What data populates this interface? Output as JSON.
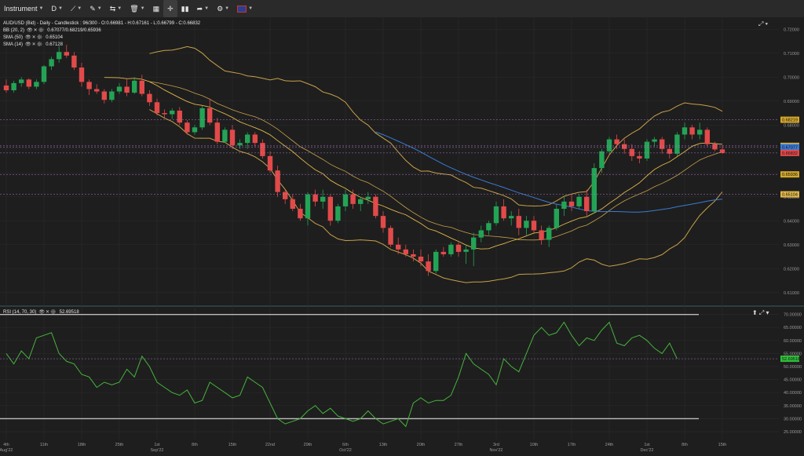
{
  "toolbar": {
    "instrument_label": "Instrument",
    "timeframe_label": "D",
    "items": [
      "chart-type",
      "draw",
      "measure",
      "delete",
      "layout",
      "fullscreen",
      "indicators",
      "share",
      "weather",
      "flag"
    ]
  },
  "header": {
    "symbol_line": "AUD/USD (Bid) - Daily - Candlestick : 96/300 - O:0.66981 - H:0.67161 - L:0.66799 - C:0.66832"
  },
  "indicators": [
    {
      "label": "BB (20, 2)",
      "values": "0.67077/0.68219/0.65936"
    },
    {
      "label": "SMA (50)",
      "values": "0.65104"
    },
    {
      "label": "SMA (14)",
      "values": "0.67128"
    }
  ],
  "rsi": {
    "label": "RSI (14, 70, 30)",
    "value": "52.69518",
    "axis": [
      "70.00000",
      "65.00000",
      "60.00000",
      "55.00000",
      "50.00000",
      "45.00000",
      "40.00000",
      "35.00000",
      "30.00000",
      "25.00000"
    ],
    "current_tag": "52.69518"
  },
  "price_axis": {
    "ticks": [
      "0.72000",
      "0.71000",
      "0.70000",
      "0.69000",
      "0.68000",
      "0.67000",
      "0.66000",
      "0.65000",
      "0.64000",
      "0.63000",
      "0.62000",
      "0.61000"
    ],
    "tags": [
      {
        "text": "0.68219",
        "color": "#d4a72c",
        "price": 0.68219
      },
      {
        "text": "0.67128",
        "color": "#e0b64a",
        "price": 0.67128
      },
      {
        "text": "0.67077",
        "color": "#3a7bd5",
        "price": 0.67077
      },
      {
        "text": "0.66832",
        "color": "#e24a4a",
        "price": 0.66832
      },
      {
        "text": "0.65936",
        "color": "#d4a72c",
        "price": 0.65936
      },
      {
        "text": "0.65104",
        "color": "#e0b64a",
        "price": 0.65104
      }
    ]
  },
  "time_axis": {
    "ticks": [
      {
        "day": "4th",
        "month": "Aug'22",
        "i": 0
      },
      {
        "day": "11th",
        "month": "",
        "i": 5
      },
      {
        "day": "18th",
        "month": "",
        "i": 10
      },
      {
        "day": "25th",
        "month": "",
        "i": 15
      },
      {
        "day": "1st",
        "month": "Sep'22",
        "i": 20
      },
      {
        "day": "8th",
        "month": "",
        "i": 25
      },
      {
        "day": "15th",
        "month": "",
        "i": 30
      },
      {
        "day": "22nd",
        "month": "",
        "i": 35
      },
      {
        "day": "29th",
        "month": "",
        "i": 40
      },
      {
        "day": "6th",
        "month": "Oct'22",
        "i": 45
      },
      {
        "day": "13th",
        "month": "",
        "i": 50
      },
      {
        "day": "20th",
        "month": "",
        "i": 55
      },
      {
        "day": "27th",
        "month": "",
        "i": 60
      },
      {
        "day": "3rd",
        "month": "Nov'22",
        "i": 65
      },
      {
        "day": "10th",
        "month": "",
        "i": 70
      },
      {
        "day": "17th",
        "month": "",
        "i": 75
      },
      {
        "day": "24th",
        "month": "",
        "i": 80
      },
      {
        "day": "1st",
        "month": "Dec'22",
        "i": 85
      },
      {
        "day": "8th",
        "month": "",
        "i": 90
      },
      {
        "day": "15th",
        "month": "",
        "i": 95
      }
    ]
  },
  "chart_data": {
    "type": "candlestick",
    "ylim": [
      0.605,
      0.725
    ],
    "candles": [
      [
        0.6965,
        0.699,
        0.6935,
        0.6945
      ],
      [
        0.6945,
        0.6985,
        0.6935,
        0.6975
      ],
      [
        0.6975,
        0.7,
        0.696,
        0.699
      ],
      [
        0.699,
        0.6995,
        0.695,
        0.696
      ],
      [
        0.696,
        0.699,
        0.695,
        0.698
      ],
      [
        0.698,
        0.705,
        0.697,
        0.7045
      ],
      [
        0.7045,
        0.7085,
        0.703,
        0.7075
      ],
      [
        0.7075,
        0.713,
        0.706,
        0.7105
      ],
      [
        0.7105,
        0.7135,
        0.708,
        0.709
      ],
      [
        0.709,
        0.7105,
        0.703,
        0.704
      ],
      [
        0.704,
        0.706,
        0.696,
        0.698
      ],
      [
        0.698,
        0.699,
        0.6925,
        0.695
      ],
      [
        0.695,
        0.697,
        0.693,
        0.694
      ],
      [
        0.694,
        0.695,
        0.689,
        0.6905
      ],
      [
        0.6905,
        0.695,
        0.6895,
        0.694
      ],
      [
        0.694,
        0.6975,
        0.693,
        0.696
      ],
      [
        0.696,
        0.699,
        0.692,
        0.6935
      ],
      [
        0.6935,
        0.7,
        0.693,
        0.6985
      ],
      [
        0.6985,
        0.701,
        0.692,
        0.693
      ],
      [
        0.693,
        0.6945,
        0.688,
        0.6895
      ],
      [
        0.6895,
        0.691,
        0.684,
        0.685
      ],
      [
        0.685,
        0.6865,
        0.683,
        0.6845
      ],
      [
        0.6845,
        0.687,
        0.6825,
        0.686
      ],
      [
        0.686,
        0.6875,
        0.68,
        0.681
      ],
      [
        0.681,
        0.682,
        0.676,
        0.677
      ],
      [
        0.677,
        0.68,
        0.676,
        0.679
      ],
      [
        0.679,
        0.688,
        0.678,
        0.687
      ],
      [
        0.687,
        0.691,
        0.68,
        0.681
      ],
      [
        0.681,
        0.683,
        0.672,
        0.673
      ],
      [
        0.673,
        0.679,
        0.6725,
        0.678
      ],
      [
        0.678,
        0.68,
        0.67,
        0.6715
      ],
      [
        0.6715,
        0.674,
        0.67,
        0.6725
      ],
      [
        0.6725,
        0.677,
        0.67,
        0.676
      ],
      [
        0.676,
        0.677,
        0.671,
        0.6725
      ],
      [
        0.6725,
        0.674,
        0.666,
        0.667
      ],
      [
        0.667,
        0.669,
        0.66,
        0.661
      ],
      [
        0.661,
        0.663,
        0.65,
        0.652
      ],
      [
        0.652,
        0.653,
        0.647,
        0.649
      ],
      [
        0.649,
        0.651,
        0.644,
        0.645
      ],
      [
        0.645,
        0.647,
        0.64,
        0.641
      ],
      [
        0.641,
        0.652,
        0.638,
        0.651
      ],
      [
        0.651,
        0.653,
        0.646,
        0.648
      ],
      [
        0.648,
        0.653,
        0.645,
        0.65
      ],
      [
        0.65,
        0.651,
        0.638,
        0.64
      ],
      [
        0.64,
        0.647,
        0.639,
        0.646
      ],
      [
        0.646,
        0.653,
        0.644,
        0.651
      ],
      [
        0.651,
        0.653,
        0.645,
        0.647
      ],
      [
        0.647,
        0.65,
        0.644,
        0.649
      ],
      [
        0.649,
        0.652,
        0.647,
        0.65
      ],
      [
        0.65,
        0.651,
        0.641,
        0.642
      ],
      [
        0.642,
        0.644,
        0.635,
        0.637
      ],
      [
        0.637,
        0.638,
        0.629,
        0.63
      ],
      [
        0.63,
        0.633,
        0.626,
        0.628
      ],
      [
        0.628,
        0.63,
        0.625,
        0.626
      ],
      [
        0.626,
        0.628,
        0.623,
        0.625
      ],
      [
        0.625,
        0.628,
        0.621,
        0.623
      ],
      [
        0.623,
        0.626,
        0.617,
        0.619
      ],
      [
        0.619,
        0.628,
        0.618,
        0.627
      ],
      [
        0.627,
        0.629,
        0.625,
        0.626
      ],
      [
        0.626,
        0.631,
        0.625,
        0.63
      ],
      [
        0.63,
        0.631,
        0.625,
        0.627
      ],
      [
        0.627,
        0.63,
        0.622,
        0.628
      ],
      [
        0.628,
        0.635,
        0.621,
        0.633
      ],
      [
        0.633,
        0.638,
        0.631,
        0.636
      ],
      [
        0.636,
        0.64,
        0.634,
        0.639
      ],
      [
        0.639,
        0.648,
        0.638,
        0.646
      ],
      [
        0.646,
        0.649,
        0.64,
        0.641
      ],
      [
        0.641,
        0.644,
        0.638,
        0.642
      ],
      [
        0.642,
        0.645,
        0.634,
        0.637
      ],
      [
        0.637,
        0.642,
        0.634,
        0.64
      ],
      [
        0.64,
        0.642,
        0.635,
        0.636
      ],
      [
        0.636,
        0.638,
        0.63,
        0.632
      ],
      [
        0.632,
        0.638,
        0.629,
        0.637
      ],
      [
        0.637,
        0.647,
        0.636,
        0.645
      ],
      [
        0.645,
        0.65,
        0.642,
        0.648
      ],
      [
        0.648,
        0.651,
        0.644,
        0.646
      ],
      [
        0.646,
        0.651,
        0.645,
        0.65
      ],
      [
        0.65,
        0.653,
        0.642,
        0.644
      ],
      [
        0.644,
        0.664,
        0.643,
        0.662
      ],
      [
        0.662,
        0.67,
        0.66,
        0.669
      ],
      [
        0.669,
        0.675,
        0.668,
        0.674
      ],
      [
        0.674,
        0.676,
        0.67,
        0.672
      ],
      [
        0.672,
        0.674,
        0.668,
        0.67
      ],
      [
        0.67,
        0.672,
        0.665,
        0.667
      ],
      [
        0.667,
        0.669,
        0.664,
        0.666
      ],
      [
        0.666,
        0.674,
        0.665,
        0.673
      ],
      [
        0.673,
        0.675,
        0.671,
        0.674
      ],
      [
        0.674,
        0.675,
        0.668,
        0.67
      ],
      [
        0.67,
        0.672,
        0.666,
        0.668
      ],
      [
        0.668,
        0.677,
        0.667,
        0.676
      ],
      [
        0.676,
        0.681,
        0.674,
        0.679
      ],
      [
        0.679,
        0.68,
        0.674,
        0.676
      ],
      [
        0.676,
        0.681,
        0.674,
        0.678
      ],
      [
        0.678,
        0.679,
        0.671,
        0.672
      ],
      [
        0.672,
        0.673,
        0.669,
        0.6698
      ],
      [
        0.6698,
        0.6716,
        0.668,
        0.6683
      ]
    ],
    "rsi_values": [
      55,
      51,
      56,
      53,
      61,
      62,
      63,
      55,
      52,
      51,
      47,
      46,
      42,
      44,
      43,
      44,
      49,
      46,
      54,
      50,
      44,
      42,
      40,
      39,
      41,
      36,
      37,
      44,
      42,
      40,
      38,
      39,
      46,
      44,
      42,
      36,
      30,
      28,
      29,
      30,
      33,
      35,
      32,
      34,
      31,
      30,
      29,
      30,
      33,
      30,
      28,
      29,
      30,
      27,
      36,
      38,
      36,
      37,
      37,
      39,
      46,
      55,
      51,
      49,
      47,
      43,
      53,
      50,
      48,
      55,
      62,
      65,
      62,
      63,
      67,
      62,
      58,
      61,
      60,
      64,
      67,
      59,
      58,
      61,
      62,
      60,
      57,
      55,
      59,
      53
    ]
  },
  "colors": {
    "bull": "#23a455",
    "bear": "#e24a4a",
    "bb": "#c8a04a",
    "sma50": "#3a7bd5",
    "sma14": "#e0b64a",
    "rsi": "#45b43c",
    "grid": "#2b2b2b"
  }
}
